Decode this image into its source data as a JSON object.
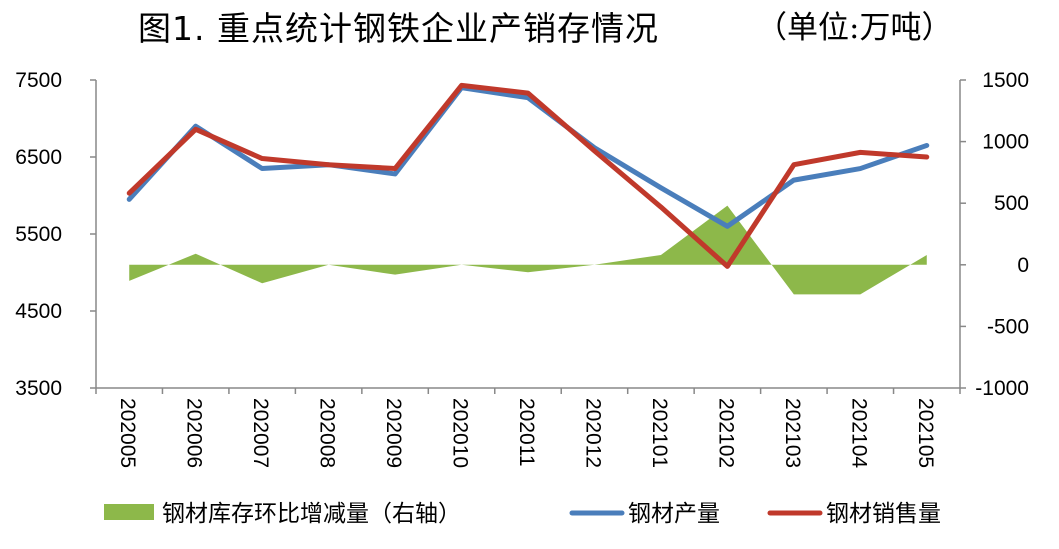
{
  "header": {
    "title": "图1. 重点统计钢铁企业产销存情况",
    "unit": "（单位:万吨）"
  },
  "chart_data": {
    "type": "line",
    "title": "图1. 重点统计钢铁企业产销存情况",
    "unit": "（单位:万吨）",
    "categories": [
      "202005",
      "202006",
      "202007",
      "202008",
      "202009",
      "202010",
      "202011",
      "202012",
      "202101",
      "202102",
      "202103",
      "202104",
      "202105"
    ],
    "left_axis": {
      "ylim": [
        3500,
        7500
      ],
      "ticks": [
        "7500",
        "6500",
        "5500",
        "4500",
        "3500"
      ],
      "tick_values": [
        7500,
        6500,
        5500,
        4500,
        3500
      ]
    },
    "right_axis": {
      "ylim": [
        -1000,
        1500
      ],
      "ticks": [
        "1500",
        "1000",
        "500",
        "0",
        "-500",
        "-1000"
      ],
      "tick_values": [
        1500,
        1000,
        500,
        0,
        -500,
        -1000
      ]
    },
    "series": [
      {
        "name": "钢材库存环比增减量（右轴）",
        "type": "area",
        "axis": "right",
        "color": "#8DB84A",
        "values": [
          -130,
          90,
          -150,
          0,
          -80,
          0,
          -60,
          0,
          80,
          480,
          -240,
          -240,
          80
        ]
      },
      {
        "name": "钢材产量",
        "type": "line",
        "axis": "left",
        "color": "#4A7EBB",
        "values": [
          5950,
          6900,
          6350,
          6400,
          6280,
          7400,
          7270,
          6620,
          6100,
          5600,
          6200,
          6350,
          6650
        ]
      },
      {
        "name": "钢材销售量",
        "type": "line",
        "axis": "left",
        "color": "#C0392B",
        "values": [
          6030,
          6860,
          6480,
          6400,
          6350,
          7430,
          7330,
          6580,
          5850,
          5080,
          6400,
          6560,
          6500
        ]
      }
    ],
    "legend_position": "bottom",
    "grid": false
  }
}
